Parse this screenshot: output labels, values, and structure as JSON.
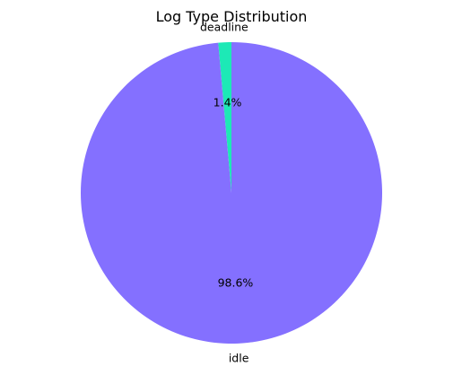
{
  "chart_data": {
    "type": "pie",
    "title": "Log Type Distribution",
    "slices": [
      {
        "label": "deadline",
        "value": 1.4,
        "pct_label": "1.4%",
        "color": "#1de9b6"
      },
      {
        "label": "idle",
        "value": 98.6,
        "pct_label": "98.6%",
        "color": "#8470ff"
      }
    ],
    "start_angle_deg": 90,
    "direction": "counterclockwise"
  }
}
